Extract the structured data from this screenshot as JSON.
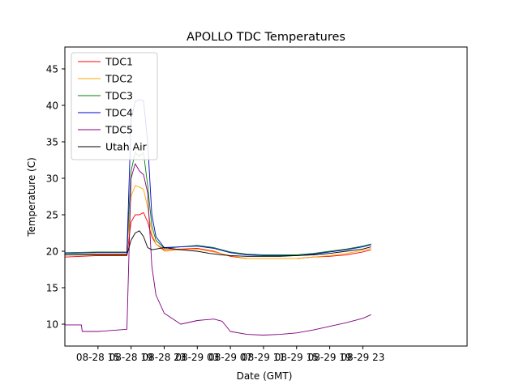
{
  "chart_data": {
    "type": "line",
    "title": "APOLLO TDC Temperatures",
    "xlabel": "Date (GMT)",
    "ylabel": "Temperature (C)",
    "xlim": [
      11,
      59.6
    ],
    "ylim": [
      7,
      48
    ],
    "x_tick_values": [
      15,
      19,
      23,
      27,
      31,
      35,
      39,
      43,
      47
    ],
    "x_tick_labels": [
      "08-28 15",
      "08-28 19",
      "08-28 23",
      "08-29 03",
      "08-29 07",
      "08-29 11",
      "08-29 15",
      "08-29 19",
      "08-29 23"
    ],
    "y_ticks": [
      10,
      15,
      20,
      25,
      30,
      35,
      40,
      45
    ],
    "legend_position": "upper left",
    "series": [
      {
        "name": "TDC1",
        "color": "#ff0000",
        "x": [
          11,
          15,
          18.5,
          19.0,
          19.5,
          20.0,
          20.5,
          21.0,
          21.5,
          22.0,
          23.0,
          25.0,
          27.0,
          29.0,
          31.0,
          33.0,
          35.0,
          37.0,
          39.0,
          41.0,
          43.0,
          45.0,
          47.0,
          48.0
        ],
        "y": [
          19.2,
          19.4,
          19.4,
          24.0,
          25.0,
          25.0,
          25.3,
          24.0,
          22.0,
          21.0,
          20.2,
          20.3,
          20.4,
          20.0,
          19.3,
          19.0,
          19.0,
          19.0,
          19.0,
          19.2,
          19.3,
          19.5,
          19.9,
          20.2
        ]
      },
      {
        "name": "TDC2",
        "color": "#ffa500",
        "x": [
          11,
          15,
          18.5,
          19.0,
          19.5,
          20.0,
          20.5,
          21.0,
          21.5,
          22.0,
          23.0,
          25.0,
          27.0,
          29.0,
          31.0,
          33.0,
          35.0,
          37.0,
          39.0,
          41.0,
          43.0,
          45.0,
          47.0,
          48.0
        ],
        "y": [
          19.5,
          19.6,
          19.6,
          27.5,
          29.0,
          28.8,
          28.5,
          26.0,
          22.5,
          21.0,
          20.0,
          20.2,
          20.3,
          19.9,
          19.4,
          19.0,
          19.0,
          19.0,
          19.0,
          19.2,
          19.4,
          19.7,
          20.1,
          20.4
        ]
      },
      {
        "name": "TDC3",
        "color": "#008000",
        "x": [
          11,
          15,
          18.5,
          19.0,
          19.5,
          20.0,
          20.5,
          21.0,
          21.5,
          22.0,
          23.0,
          25.0,
          27.0,
          29.0,
          31.0,
          33.0,
          35.0,
          37.0,
          39.0,
          41.0,
          43.0,
          45.0,
          47.0,
          48.0
        ],
        "y": [
          19.8,
          19.9,
          19.9,
          31.0,
          33.5,
          33.0,
          33.5,
          29.0,
          23.5,
          21.5,
          20.4,
          20.6,
          20.8,
          20.5,
          19.9,
          19.6,
          19.5,
          19.5,
          19.5,
          19.7,
          20.0,
          20.3,
          20.7,
          21.0
        ]
      },
      {
        "name": "TDC4",
        "color": "#0000cd",
        "x": [
          11,
          15,
          18.5,
          19.0,
          19.5,
          20.0,
          20.5,
          21.0,
          21.5,
          22.0,
          23.0,
          25.0,
          27.0,
          29.0,
          31.0,
          33.0,
          35.0,
          37.0,
          39.0,
          41.0,
          43.0,
          45.0,
          47.0,
          48.0
        ],
        "y": [
          19.7,
          19.8,
          19.8,
          38.0,
          40.5,
          40.8,
          40.6,
          35.0,
          25.0,
          22.0,
          20.5,
          20.6,
          20.7,
          20.4,
          19.8,
          19.5,
          19.4,
          19.4,
          19.4,
          19.6,
          19.9,
          20.2,
          20.6,
          20.9
        ]
      },
      {
        "name": "TDC5",
        "color": "#800080",
        "x": [
          11,
          13,
          13.1,
          15,
          18.5,
          19.0,
          19.5,
          20.0,
          20.5,
          21.0,
          21.5,
          22.0,
          23.0,
          25.0,
          27.0,
          29.0,
          30.0,
          31.0,
          33.0,
          35.0,
          37.0,
          39.0,
          41.0,
          43.0,
          45.0,
          47.0,
          48.0
        ],
        "y": [
          9.9,
          9.9,
          9.0,
          9.0,
          9.3,
          30.0,
          32.0,
          31.0,
          30.5,
          28.0,
          18.0,
          14.0,
          11.5,
          10.0,
          10.5,
          10.7,
          10.4,
          9.0,
          8.6,
          8.5,
          8.6,
          8.8,
          9.2,
          9.7,
          10.2,
          10.8,
          11.3
        ]
      },
      {
        "name": "Utah Air",
        "color": "#000000",
        "x": [
          11,
          15,
          18.5,
          19.0,
          19.5,
          20.0,
          20.5,
          21.0,
          21.5,
          22.0,
          23.0,
          25.0,
          27.0,
          28.5,
          30.0,
          31.0,
          33.0,
          35.0,
          37.0,
          39.0,
          41.0,
          43.0,
          45.0,
          47.0,
          48.0
        ],
        "y": [
          19.5,
          19.5,
          19.5,
          21.5,
          22.5,
          22.8,
          22.0,
          20.5,
          20.2,
          20.3,
          20.5,
          20.2,
          20.0,
          19.7,
          19.5,
          19.4,
          19.3,
          19.3,
          19.3,
          19.4,
          19.5,
          19.7,
          20.0,
          20.3,
          20.6
        ]
      }
    ]
  }
}
